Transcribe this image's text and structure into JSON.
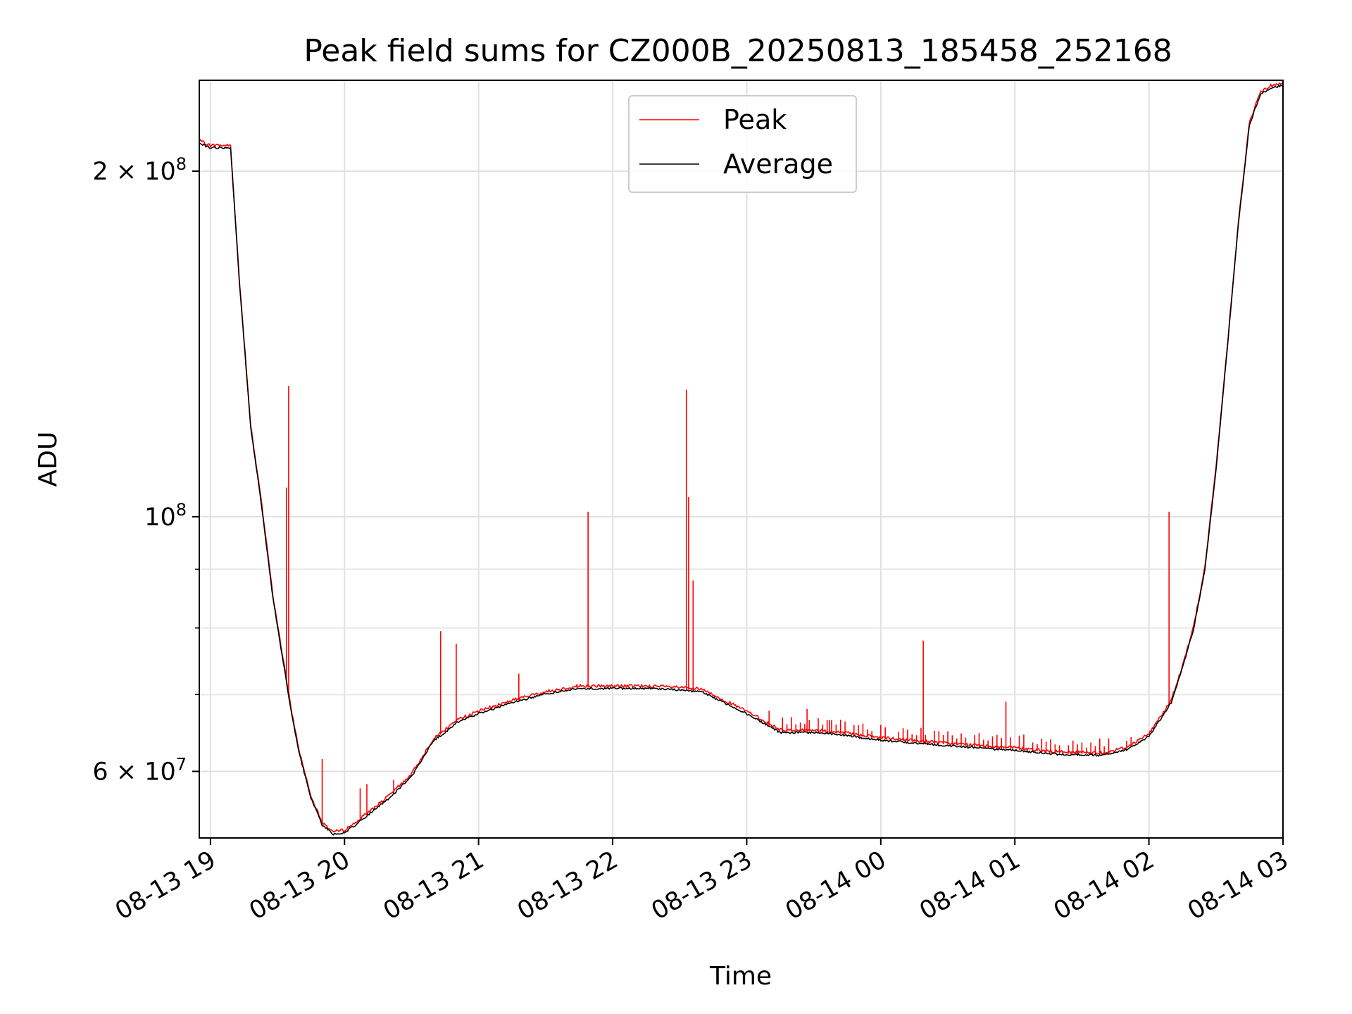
{
  "chart_data": {
    "type": "line",
    "title": "Peak field sums for CZ000B_20250813_185458_252168",
    "xlabel": "Time",
    "ylabel": "ADU",
    "yscale": "log",
    "ylim": [
      52500000,
      240000000
    ],
    "xlim": [
      "2025-08-13 18:55",
      "2025-08-14 03:00"
    ],
    "grid": true,
    "legend_position": "top-center",
    "x_tick_labels": [
      "08-13 19",
      "08-13 20",
      "08-13 21",
      "08-13 22",
      "08-13 23",
      "08-14 00",
      "08-14 01",
      "08-14 02",
      "08-14 03"
    ],
    "y_tick_labels": [
      {
        "value": 200000000,
        "mantissa": "2",
        "exponent": "8"
      },
      {
        "value": 100000000,
        "mantissa": "",
        "exponent": "8"
      },
      {
        "value": 60000000,
        "mantissa": "6",
        "exponent": "7"
      }
    ],
    "series": [
      {
        "name": "Average",
        "color": "#000000",
        "x": [
          "2025-08-13 18:55",
          "2025-08-13 19:00",
          "2025-08-13 19:05",
          "2025-08-13 19:09",
          "2025-08-13 19:13",
          "2025-08-13 19:18",
          "2025-08-13 19:23",
          "2025-08-13 19:28",
          "2025-08-13 19:33",
          "2025-08-13 19:36",
          "2025-08-13 19:40",
          "2025-08-13 19:45",
          "2025-08-13 19:50",
          "2025-08-13 19:55",
          "2025-08-13 20:00",
          "2025-08-13 20:05",
          "2025-08-13 20:10",
          "2025-08-13 20:20",
          "2025-08-13 20:30",
          "2025-08-13 20:40",
          "2025-08-13 20:45",
          "2025-08-13 20:50",
          "2025-08-13 21:00",
          "2025-08-13 21:15",
          "2025-08-13 21:30",
          "2025-08-13 21:45",
          "2025-08-13 22:00",
          "2025-08-13 22:15",
          "2025-08-13 22:30",
          "2025-08-13 22:40",
          "2025-08-13 23:00",
          "2025-08-13 23:15",
          "2025-08-13 23:30",
          "2025-08-13 23:45",
          "2025-08-14 00:00",
          "2025-08-14 00:30",
          "2025-08-14 01:00",
          "2025-08-14 01:20",
          "2025-08-14 01:40",
          "2025-08-14 01:50",
          "2025-08-14 02:00",
          "2025-08-14 02:10",
          "2025-08-14 02:15",
          "2025-08-14 02:20",
          "2025-08-14 02:25",
          "2025-08-14 02:30",
          "2025-08-14 02:35",
          "2025-08-14 02:40",
          "2025-08-14 02:45",
          "2025-08-14 02:50",
          "2025-08-14 02:55",
          "2025-08-14 03:00"
        ],
        "y": [
          212000000,
          210000000,
          210000000,
          210000000,
          160000000,
          120000000,
          102000000,
          85000000,
          74000000,
          68000000,
          62000000,
          57000000,
          54000000,
          53000000,
          53200000,
          54000000,
          55000000,
          57000000,
          59500000,
          64000000,
          65000000,
          66300000,
          67500000,
          69000000,
          70200000,
          71000000,
          71000000,
          71000000,
          70800000,
          70500000,
          67500000,
          65000000,
          65000000,
          64600000,
          64000000,
          63300000,
          62700000,
          62200000,
          62100000,
          62800000,
          64500000,
          69000000,
          74000000,
          80000000,
          90000000,
          110000000,
          140000000,
          180000000,
          220000000,
          234000000,
          237000000,
          238000000
        ]
      },
      {
        "name": "Peak",
        "color": "#ff0000",
        "spikes": [
          {
            "x": "2025-08-13 19:34",
            "y": 106000000
          },
          {
            "x": "2025-08-13 19:35",
            "y": 130000000
          },
          {
            "x": "2025-08-13 19:50",
            "y": 61500000
          },
          {
            "x": "2025-08-13 20:07",
            "y": 58000000
          },
          {
            "x": "2025-08-13 20:10",
            "y": 58500000
          },
          {
            "x": "2025-08-13 20:22",
            "y": 59000000
          },
          {
            "x": "2025-08-13 20:43",
            "y": 79500000
          },
          {
            "x": "2025-08-13 20:50",
            "y": 77500000
          },
          {
            "x": "2025-08-13 21:18",
            "y": 73000000
          },
          {
            "x": "2025-08-13 21:44",
            "y": 71500000
          },
          {
            "x": "2025-08-13 21:49",
            "y": 101000000
          },
          {
            "x": "2025-08-13 22:33",
            "y": 129000000
          },
          {
            "x": "2025-08-13 22:34",
            "y": 104000000
          },
          {
            "x": "2025-08-13 22:36",
            "y": 88000000
          },
          {
            "x": "2025-08-13 23:27",
            "y": 68000000
          },
          {
            "x": "2025-08-13 23:37",
            "y": 66500000
          },
          {
            "x": "2025-08-14 00:19",
            "y": 78000000
          },
          {
            "x": "2025-08-14 00:56",
            "y": 69000000
          },
          {
            "x": "2025-08-14 02:09",
            "y": 101000000
          }
        ]
      }
    ]
  }
}
